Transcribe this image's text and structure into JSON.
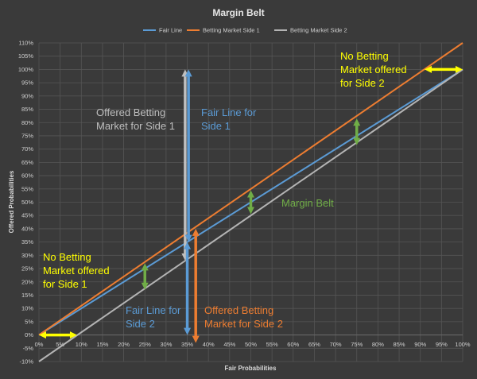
{
  "chart_data": {
    "type": "line",
    "title": "Margin Belt",
    "xlabel": "Fair Probabilities",
    "ylabel": "Offered Probabilities",
    "xlim": [
      0,
      1
    ],
    "ylim": [
      -0.1,
      1.1
    ],
    "x_ticks": [
      "0%",
      "5%",
      "10%",
      "15%",
      "20%",
      "25%",
      "30%",
      "35%",
      "40%",
      "45%",
      "50%",
      "55%",
      "60%",
      "65%",
      "70%",
      "75%",
      "80%",
      "85%",
      "90%",
      "95%",
      "100%"
    ],
    "y_ticks": [
      "-10%",
      "-5%",
      "0%",
      "5%",
      "10%",
      "15%",
      "20%",
      "25%",
      "30%",
      "35%",
      "40%",
      "45%",
      "50%",
      "55%",
      "60%",
      "65%",
      "70%",
      "75%",
      "80%",
      "85%",
      "90%",
      "95%",
      "100%",
      "105%",
      "110%"
    ],
    "grid": true,
    "legend_position": "top-center",
    "series": [
      {
        "name": "Fair Line",
        "color": "#5b9bd5",
        "x": [
          0,
          1
        ],
        "y": [
          0,
          1
        ]
      },
      {
        "name": "Betting Market Side 1",
        "color": "#ed7d31",
        "x": [
          0,
          1
        ],
        "y": [
          0,
          1.1
        ]
      },
      {
        "name": "Betting Market Side 2",
        "color": "#b4b4b4",
        "x": [
          0,
          1
        ],
        "y": [
          -0.1,
          1.0
        ]
      }
    ],
    "annotations": [
      {
        "id": "offered-side1",
        "lines": [
          "Offered Betting",
          "Market for Side 1"
        ],
        "color": "#bfbfbf"
      },
      {
        "id": "fair-line-side1",
        "lines": [
          "Fair Line for",
          "Side 1"
        ],
        "color": "#5b9bd5"
      },
      {
        "id": "no-market-side2",
        "lines": [
          "No Betting",
          "Market offered",
          "for Side 2"
        ],
        "color": "#ffff00"
      },
      {
        "id": "margin-belt",
        "lines": [
          "Margin Belt"
        ],
        "color": "#70ad47"
      },
      {
        "id": "no-market-side1",
        "lines": [
          "No Betting",
          "Market offered",
          "for Side 1"
        ],
        "color": "#ffff00"
      },
      {
        "id": "fair-line-side2",
        "lines": [
          "Fair Line for",
          "Side 2"
        ],
        "color": "#5b9bd5"
      },
      {
        "id": "offered-side2",
        "lines": [
          "Offered Betting",
          "Market for Side 2"
        ],
        "color": "#ed7d31"
      }
    ],
    "arrows": [
      {
        "id": "arrow-gray-offered-side1",
        "color": "#bfbfbf",
        "x1": 0.345,
        "y1": 0.28,
        "x2": 0.345,
        "y2": 1.0
      },
      {
        "id": "arrow-blue-fair-side1",
        "color": "#5b9bd5",
        "x1": 0.353,
        "y1": 0.35,
        "x2": 0.353,
        "y2": 1.0
      },
      {
        "id": "arrow-blue-fair-side2",
        "color": "#5b9bd5",
        "x1": 0.35,
        "y1": 0.35,
        "x2": 0.35,
        "y2": 0.0
      },
      {
        "id": "arrow-orange-offered-side2",
        "color": "#ed7d31",
        "x1": 0.37,
        "y1": 0.4,
        "x2": 0.37,
        "y2": -0.03
      },
      {
        "id": "arrow-green-belt-1",
        "color": "#70ad47",
        "x1": 0.25,
        "y1": 0.27,
        "x2": 0.25,
        "y2": 0.17
      },
      {
        "id": "arrow-green-belt-2",
        "color": "#70ad47",
        "x1": 0.5,
        "y1": 0.545,
        "x2": 0.5,
        "y2": 0.455
      },
      {
        "id": "arrow-green-belt-3",
        "color": "#70ad47",
        "x1": 0.75,
        "y1": 0.815,
        "x2": 0.75,
        "y2": 0.715
      },
      {
        "id": "arrow-yellow-side1",
        "color": "#ffff00",
        "x1": 0.0,
        "y1": 0.0,
        "x2": 0.09,
        "y2": 0.0
      },
      {
        "id": "arrow-yellow-side2",
        "color": "#ffff00",
        "x1": 0.91,
        "y1": 1.0,
        "x2": 1.0,
        "y2": 1.0
      }
    ]
  }
}
